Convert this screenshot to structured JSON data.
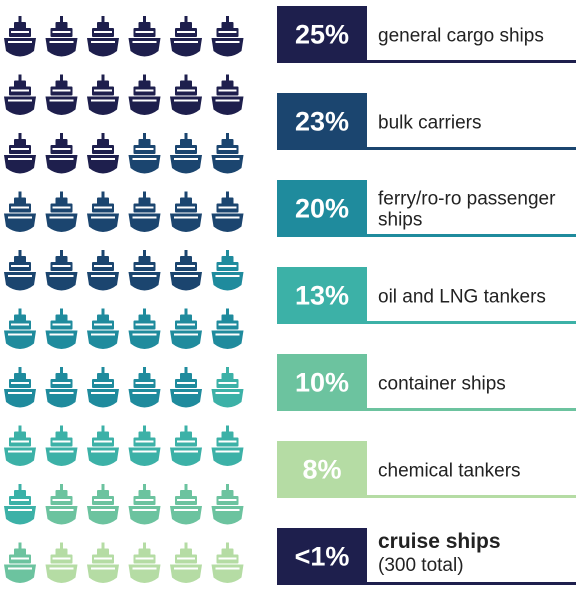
{
  "chart_data": {
    "type": "waffle",
    "categories": [
      "general cargo ships",
      "bulk carriers",
      "ferry/ro-ro passenger ships",
      "oil and LNG tankers",
      "container ships",
      "chemical tankers",
      "cruise ships"
    ],
    "values": [
      25,
      23,
      20,
      13,
      10,
      8,
      0.5
    ],
    "value_labels": [
      "25%",
      "23%",
      "20%",
      "13%",
      "10%",
      "8%",
      "<1%"
    ],
    "colors": [
      "#1e1f4d",
      "#1b456f",
      "#1f8b9d",
      "#3cb1a7",
      "#6cc39f",
      "#b5dca4",
      "#1e1f4d"
    ],
    "annotations": [
      "(300 total)"
    ]
  }
}
